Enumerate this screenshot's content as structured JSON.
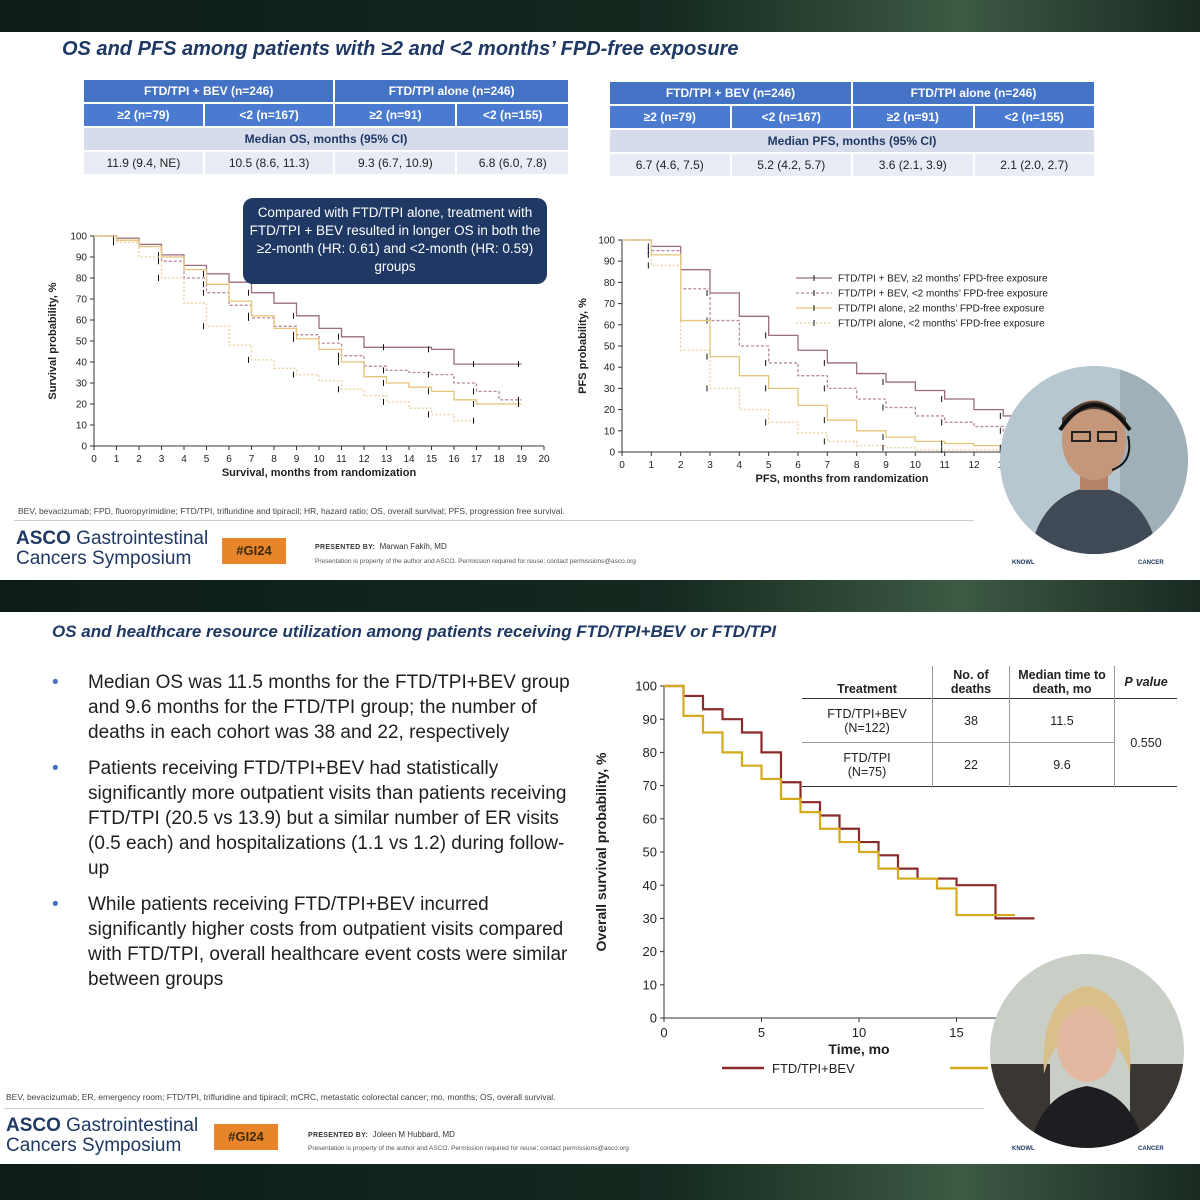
{
  "slide1": {
    "title": "OS and PFS among patients with ≥2 and <2 months’ FPD-free exposure",
    "os_table": {
      "groups": [
        "FTD/TPI + BEV (n=246)",
        "FTD/TPI alone (n=246)"
      ],
      "subgroups": [
        "≥2 (n=79)",
        "<2 (n=167)",
        "≥2 (n=91)",
        "<2 (n=155)"
      ],
      "metric": "Median OS, months (95% CI)",
      "values": [
        "11.9 (9.4, NE)",
        "10.5 (8.6, 11.3)",
        "9.3 (6.7, 10.9)",
        "6.8 (6.0, 7.8)"
      ]
    },
    "pfs_table": {
      "groups": [
        "FTD/TPI + BEV (n=246)",
        "FTD/TPI alone (n=246)"
      ],
      "subgroups": [
        "≥2 (n=79)",
        "<2 (n=167)",
        "≥2 (n=91)",
        "<2 (n=155)"
      ],
      "metric": "Median PFS, months (95% CI)",
      "values": [
        "6.7 (4.6, 7.5)",
        "5.2 (4.2, 5.7)",
        "3.6 (2.1, 3.9)",
        "2.1 (2.0, 2.7)"
      ]
    },
    "callout": "Compared with FTD/TPI alone, treatment with FTD/TPI + BEV resulted in longer OS in both the ≥2-month (HR: 0.61) and <2-month (HR: 0.59) groups",
    "footnote": "BEV, bevacizumab; FPD, fluoropyrimidine; FTD/TPI, trifluridine and tipiracil; HR, hazard ratio; OS, overall survival; PFS, progression free survival.",
    "presenter": "Marwan Fakih, MD"
  },
  "slide2": {
    "title": "OS and healthcare resource utilization among patients receiving FTD/TPI+BEV or FTD/TPI",
    "bullets": [
      "Median OS was 11.5 months for the FTD/TPI+BEV group and 9.6 months for the FTD/TPI group; the number of deaths in each cohort was 38 and 22, respectively",
      "Patients receiving FTD/TPI+BEV had statistically significantly more outpatient visits than patients receiving FTD/TPI (20.5 vs 13.9) but a similar number of ER visits (0.5 each) and hospitalizations (1.1 vs 1.2) during follow-up",
      "While patients receiving FTD/TPI+BEV incurred significantly higher costs from outpatient visits compared with FTD/TPI, overall healthcare event costs were similar between groups"
    ],
    "deaths_table": {
      "headers": [
        "Treatment",
        "No. of deaths",
        "Median time to death, mo",
        "P value"
      ],
      "rows": [
        {
          "treatment": "FTD/TPI+BEV",
          "n": "(N=122)",
          "deaths": "38",
          "median": "11.5"
        },
        {
          "treatment": "FTD/TPI",
          "n": "(N=75)",
          "deaths": "22",
          "median": "9.6"
        }
      ],
      "p_value": "0.550"
    },
    "footnote": "BEV, bevacizumab; ER, emergency room; FTD/TPI, trifluridine and tipiracil; mCRC, metastatic colorectal cancer; mo, months; OS, overall survival.",
    "presenter": "Joleen M Hubbard, MD"
  },
  "footer": {
    "asco_bold": "ASCO",
    "asco_rest": " Gastrointestinal",
    "asco_line2": "Cancers Symposium",
    "hashtag": "#GI24",
    "presented_by": "PRESENTED BY:",
    "property_note": "Presentation is property of the author and ASCO. Permission required for reuse; contact permissions@asco.org",
    "asco_tagline_left": "KNOWL",
    "asco_tagline_right": "CANCER"
  },
  "colors": {
    "title_navy": "#1f3864",
    "table_blue": "#4472c4",
    "hashtag_orange": "#e8852b",
    "series_bev_ge2": "#9b6e7c",
    "series_bev_lt2": "#b88aa0",
    "series_alone_ge2": "#e6c47a",
    "series_alone_lt2": "#e8d39a",
    "series2_bev": "#8b2a2a",
    "series2_tpi": "#d4aa1a"
  },
  "chart_data": [
    {
      "type": "line",
      "title": "",
      "xlabel": "Survival, months from randomization",
      "ylabel": "Survival probability, %",
      "xlim": [
        0,
        20
      ],
      "ylim": [
        0,
        100
      ],
      "xticks": [
        "0",
        "1",
        "2",
        "3",
        "4",
        "5",
        "6",
        "7",
        "8",
        "9",
        "10",
        "11",
        "12",
        "13",
        "14",
        "15",
        "16",
        "17",
        "18",
        "19",
        "20"
      ],
      "yticks": [
        "0",
        "10",
        "20",
        "30",
        "40",
        "50",
        "60",
        "70",
        "80",
        "90",
        "100"
      ],
      "series": [
        {
          "x": [
            0,
            1,
            2,
            3,
            4,
            5,
            6,
            7,
            8,
            9,
            10,
            11,
            12,
            13,
            14,
            15,
            16,
            17,
            18,
            19
          ],
          "values": [
            100,
            99,
            96,
            91,
            86,
            82,
            78,
            73,
            68,
            62,
            56,
            52,
            47,
            47,
            47,
            46,
            39,
            39,
            39,
            39
          ]
        },
        {
          "x": [
            0,
            1,
            2,
            3,
            4,
            5,
            6,
            7,
            8,
            9,
            10,
            11,
            12,
            13,
            14,
            15,
            16,
            17,
            18,
            19
          ],
          "values": [
            100,
            98,
            95,
            88,
            80,
            73,
            67,
            61,
            57,
            53,
            49,
            43,
            38,
            36,
            35,
            34,
            30,
            26,
            22,
            22
          ]
        },
        {
          "x": [
            0,
            1,
            2,
            3,
            4,
            5,
            6,
            7,
            8,
            9,
            10,
            11,
            12,
            13,
            14,
            15,
            16,
            17,
            18,
            19
          ],
          "values": [
            100,
            98,
            95,
            90,
            84,
            77,
            69,
            62,
            56,
            51,
            46,
            40,
            33,
            30,
            28,
            26,
            22,
            20,
            20,
            20
          ]
        },
        {
          "x": [
            0,
            1,
            2,
            3,
            4,
            5,
            6,
            7,
            8,
            9,
            10,
            11,
            12,
            13,
            14,
            15,
            16,
            17
          ],
          "values": [
            100,
            97,
            90,
            80,
            68,
            57,
            48,
            41,
            37,
            34,
            31,
            27,
            24,
            21,
            18,
            15,
            12,
            12
          ]
        }
      ]
    },
    {
      "type": "line",
      "title": "",
      "xlabel": "PFS, months from randomization",
      "ylabel": "PFS probability, %",
      "xlim": [
        0,
        15
      ],
      "ylim": [
        0,
        100
      ],
      "xticks": [
        "0",
        "1",
        "2",
        "3",
        "4",
        "5",
        "6",
        "7",
        "8",
        "9",
        "10",
        "11",
        "12",
        "13",
        "14"
      ],
      "yticks": [
        "0",
        "10",
        "20",
        "30",
        "40",
        "50",
        "60",
        "70",
        "80",
        "90",
        "100"
      ],
      "legend": [
        "FTD/TPI + BEV, ≥2 months’ FPD-free exposure",
        "FTD/TPI + BEV, <2 months’ FPD-free exposure",
        "FTD/TPI alone, ≥2 months’ FPD-free exposure",
        "FTD/TPI alone, <2 months’ FPD-free exposure"
      ],
      "legend_position": "top-right",
      "series": [
        {
          "name": "FTD/TPI + BEV, ≥2 months’ FPD-free exposure",
          "x": [
            0,
            1,
            2,
            3,
            4,
            5,
            6,
            7,
            8,
            9,
            10,
            11,
            12,
            13,
            14,
            15
          ],
          "values": [
            100,
            97,
            86,
            75,
            64,
            55,
            48,
            42,
            37,
            33,
            29,
            25,
            20,
            17,
            17,
            17
          ]
        },
        {
          "name": "FTD/TPI + BEV, <2 months’ FPD-free exposure",
          "x": [
            0,
            1,
            2,
            3,
            4,
            5,
            6,
            7,
            8,
            9,
            10,
            11,
            12,
            13,
            14,
            15
          ],
          "values": [
            100,
            95,
            77,
            62,
            50,
            42,
            36,
            30,
            25,
            21,
            17,
            14,
            12,
            10,
            9,
            9
          ]
        },
        {
          "name": "FTD/TPI alone, ≥2 months’ FPD-free exposure",
          "x": [
            0,
            1,
            2,
            3,
            4,
            5,
            6,
            7,
            8,
            9,
            10,
            11,
            12,
            13,
            14,
            15
          ],
          "values": [
            100,
            93,
            62,
            45,
            36,
            30,
            22,
            15,
            10,
            7,
            5,
            4,
            3,
            2,
            2,
            2
          ]
        },
        {
          "name": "FTD/TPI alone, <2 months’ FPD-free exposure",
          "x": [
            0,
            1,
            2,
            3,
            4,
            5,
            6,
            7,
            8,
            9,
            10,
            11,
            12,
            13,
            14,
            15
          ],
          "values": [
            100,
            88,
            48,
            30,
            20,
            14,
            9,
            5,
            3,
            2,
            1,
            1,
            1,
            1,
            1,
            1
          ]
        }
      ]
    },
    {
      "type": "line",
      "title": "",
      "xlabel": "Time, mo",
      "ylabel": "Overall survival probability, %",
      "xlim": [
        0,
        20
      ],
      "ylim": [
        0,
        100
      ],
      "xticks": [
        "0",
        "5",
        "10",
        "15"
      ],
      "yticks": [
        "0",
        "10",
        "20",
        "30",
        "40",
        "50",
        "60",
        "70",
        "80",
        "90",
        "100"
      ],
      "legend": [
        "FTD/TPI+BEV"
      ],
      "series": [
        {
          "name": "FTD/TPI+BEV",
          "x": [
            0,
            1,
            2,
            3,
            4,
            5,
            6,
            7,
            8,
            9,
            10,
            11,
            12,
            13,
            14,
            15,
            16,
            17,
            18,
            19
          ],
          "values": [
            100,
            97,
            93,
            90,
            86,
            80,
            71,
            65,
            61,
            57,
            53,
            49,
            45,
            42,
            42,
            40,
            40,
            30,
            30,
            30
          ]
        },
        {
          "name": "FTD/TPI",
          "x": [
            0,
            1,
            2,
            3,
            4,
            5,
            6,
            7,
            8,
            9,
            10,
            11,
            12,
            13,
            14,
            15,
            16,
            17,
            18
          ],
          "values": [
            100,
            91,
            86,
            80,
            76,
            72,
            66,
            62,
            57,
            53,
            50,
            45,
            42,
            42,
            39,
            31,
            31,
            31,
            31
          ]
        }
      ]
    }
  ]
}
